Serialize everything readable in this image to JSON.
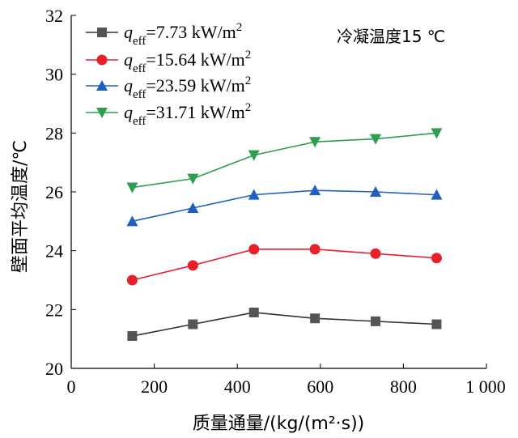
{
  "chart_data": {
    "type": "line",
    "xlabel": "质量通量/(kg/(m²·s))",
    "ylabel": "壁面平均温度/℃",
    "annotation": "冷凝温度15 ℃",
    "xlim": [
      0,
      1000
    ],
    "ylim": [
      20,
      32
    ],
    "x_ticks": [
      0,
      200,
      400,
      600,
      800,
      1000
    ],
    "x_tick_labels": [
      "0",
      "200",
      "400",
      "600",
      "800",
      "1 000"
    ],
    "y_ticks": [
      20,
      22,
      24,
      26,
      28,
      30,
      32
    ],
    "y_tick_labels": [
      "20",
      "22",
      "24",
      "26",
      "28",
      "30",
      "32"
    ],
    "grid": false,
    "legend_position": "top-left",
    "x": [
      147,
      293,
      440,
      587,
      733,
      880
    ],
    "series": [
      {
        "name": "q_eff=7.73 kW/m²",
        "legend": {
          "q": "q",
          "sub": "eff",
          "rest": "=7.73 kW/m",
          "sup": "2"
        },
        "marker": "square",
        "color": "#555555",
        "line_color": "#333333",
        "values": [
          21.1,
          21.5,
          21.9,
          21.7,
          21.6,
          21.5
        ]
      },
      {
        "name": "q_eff=15.64 kW/m²",
        "legend": {
          "q": "q",
          "sub": "eff",
          "rest": "=15.64 kW/m",
          "sup": "2"
        },
        "marker": "circle",
        "color": "#e8202a",
        "line_color": "#e8202a",
        "values": [
          23.0,
          23.5,
          24.05,
          24.05,
          23.9,
          23.75
        ]
      },
      {
        "name": "q_eff=23.59 kW/m²",
        "legend": {
          "q": "q",
          "sub": "eff",
          "rest": "=23.59 kW/m",
          "sup": "2"
        },
        "marker": "triangle-up",
        "color": "#1f5fbf",
        "line_color": "#1f5fbf",
        "values": [
          25.0,
          25.45,
          25.9,
          26.05,
          26.0,
          25.9
        ]
      },
      {
        "name": "q_eff=31.71 kW/m²",
        "legend": {
          "q": "q",
          "sub": "eff",
          "rest": "=31.71 kW/m",
          "sup": "2"
        },
        "marker": "triangle-down",
        "color": "#2e9e4f",
        "line_color": "#2e9e4f",
        "values": [
          26.15,
          26.45,
          27.25,
          27.7,
          27.8,
          28.0
        ]
      }
    ]
  }
}
